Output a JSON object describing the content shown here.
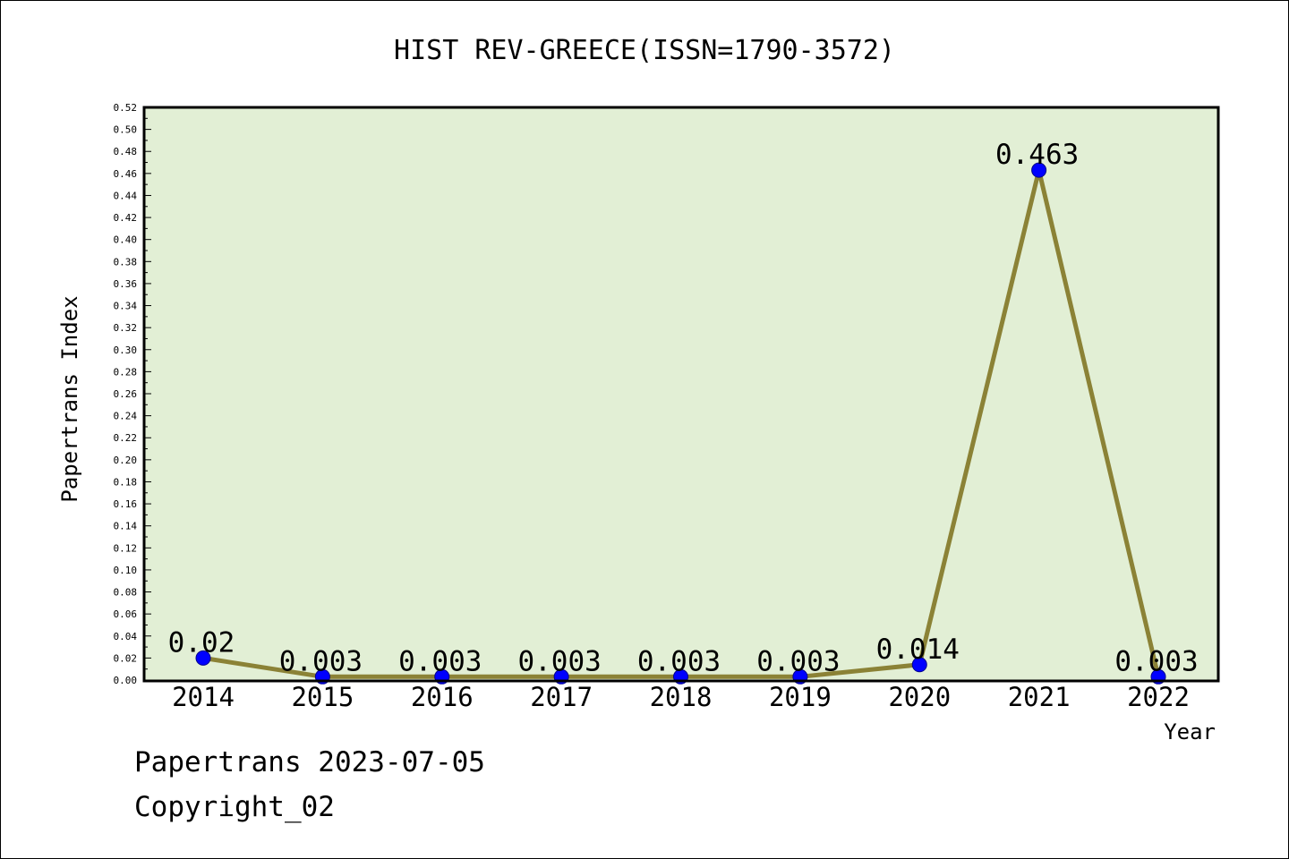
{
  "chart_data": {
    "type": "line",
    "title": "HIST REV-GREECE(ISSN=1790-3572)",
    "xlabel": "Year",
    "ylabel": "Papertrans Index",
    "categories": [
      "2014",
      "2015",
      "2016",
      "2017",
      "2018",
      "2019",
      "2020",
      "2021",
      "2022"
    ],
    "series": [
      {
        "values": [
          0.02,
          0.003,
          0.003,
          0.003,
          0.003,
          0.003,
          0.014,
          0.463,
          0.003
        ],
        "labels": [
          "0.02",
          "0.003",
          "0.003",
          "0.003",
          "0.003",
          "0.003",
          "0.014",
          "0.463",
          "0.003"
        ]
      }
    ],
    "ylim": [
      0,
      0.52
    ],
    "ytick_labels": [
      "0.00",
      "0.02",
      "0.04",
      "0.06",
      "0.08",
      "0.10",
      "0.12",
      "0.14",
      "0.16",
      "0.18",
      "0.20",
      "0.22",
      "0.24",
      "0.26",
      "0.28",
      "0.30",
      "0.32",
      "0.34",
      "0.36",
      "0.38",
      "0.40",
      "0.42",
      "0.44",
      "0.46",
      "0.48",
      "0.50",
      "0.52"
    ],
    "grid": false,
    "legend": "none",
    "colors": {
      "plot_background": "#e2efd5",
      "line": "#8b8236",
      "marker": "#0000ff",
      "marker_edge": "#00008b"
    }
  },
  "footer": {
    "source": "Papertrans 2023-07-05",
    "copyright": "Copyright_02"
  }
}
